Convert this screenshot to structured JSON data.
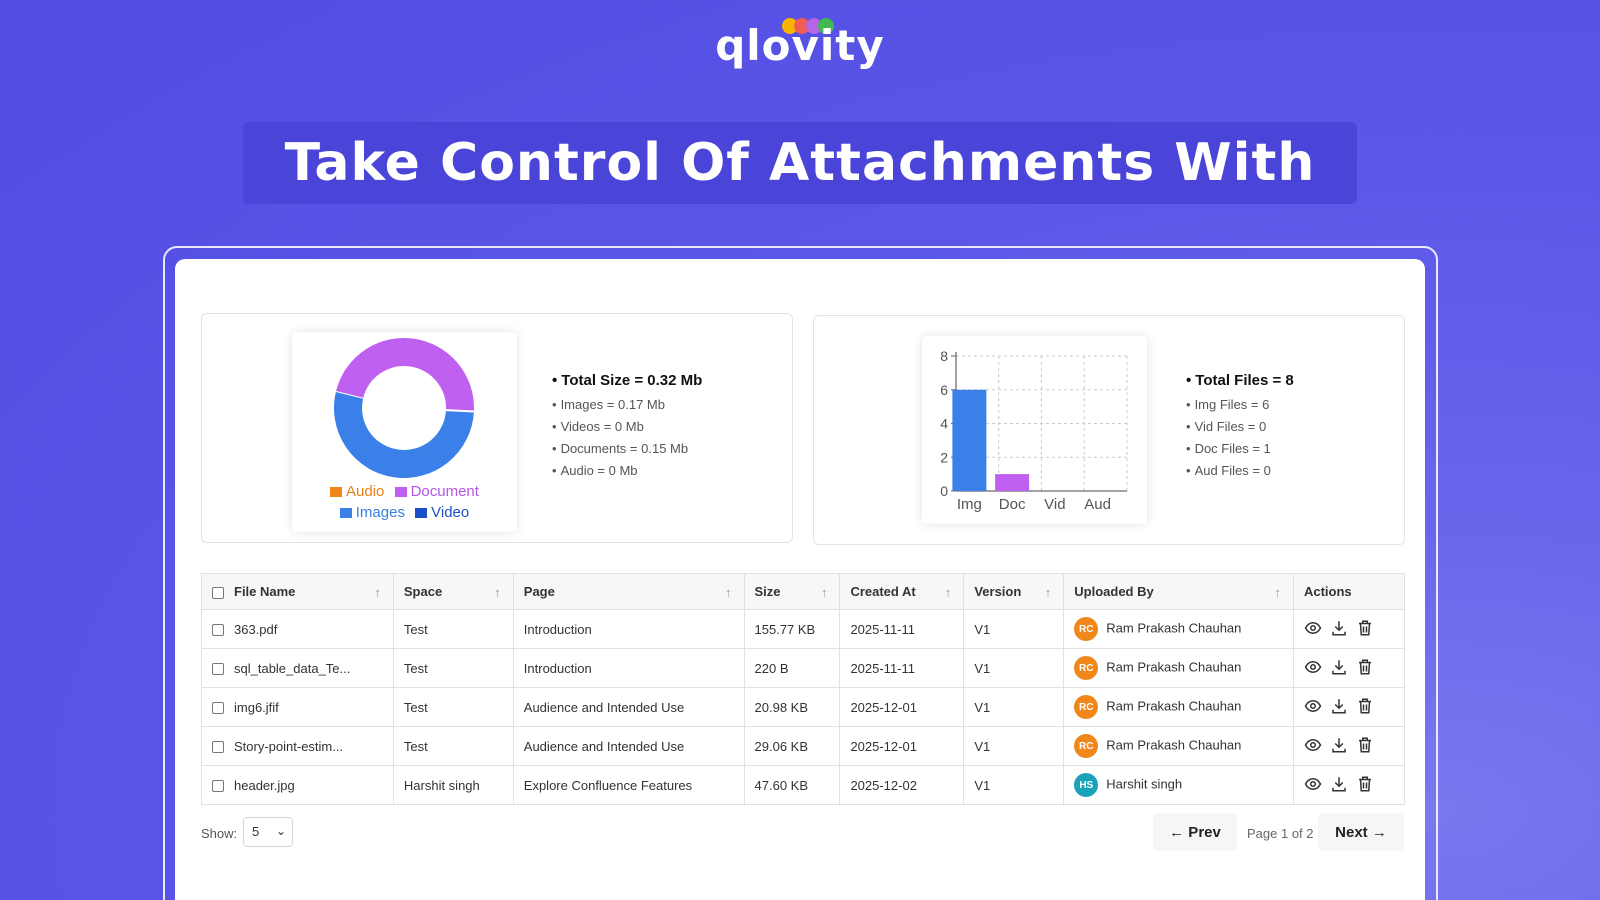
{
  "brand": {
    "name": "qlovity",
    "dot_colors": [
      "#f7b500",
      "#f25c54",
      "#b565e6",
      "#3fb950"
    ]
  },
  "headline": "Take Control Of Attachments With",
  "size_card": {
    "legend": [
      {
        "label": "Audio",
        "color": "#f0871a",
        "text_color": "#e8821a"
      },
      {
        "label": "Document",
        "color": "#c060f0",
        "text_color": "#b656ea"
      },
      {
        "label": "Images",
        "color": "#3a80e8",
        "text_color": "#3a7fe0"
      },
      {
        "label": "Video",
        "color": "#1a4fc8",
        "text_color": "#1f4fc2"
      }
    ],
    "total_label": "Total Size =  0.32 Mb",
    "rows": [
      "Images = 0.17 Mb",
      "Videos = 0 Mb",
      "Documents = 0.15 Mb",
      "Audio = 0 Mb"
    ]
  },
  "files_card": {
    "total_label": "Total Files =  8",
    "rows": [
      "Img Files = 6",
      "Vid Files = 0",
      "Doc Files = 1",
      "Aud Files = 0"
    ]
  },
  "chart_data": [
    {
      "type": "pie",
      "categories": [
        "Images",
        "Document",
        "Audio",
        "Video"
      ],
      "values": [
        0.17,
        0.15,
        0,
        0
      ],
      "colors": [
        "#3a80e8",
        "#c060f0",
        "#f0871a",
        "#1a4fc8"
      ],
      "legend": "bottom"
    },
    {
      "type": "bar",
      "categories": [
        "Img",
        "Doc",
        "Vid",
        "Aud"
      ],
      "values": [
        6,
        1,
        0,
        0
      ],
      "colors": [
        "#3a80e8",
        "#c060f0",
        "#888888",
        "#888888"
      ],
      "ylim": [
        0,
        8
      ],
      "yticks": [
        "0",
        "2",
        "4",
        "6",
        "8"
      ],
      "grid": true
    }
  ],
  "table": {
    "columns": [
      "File Name",
      "Space",
      "Page",
      "Size",
      "Created At",
      "Version",
      "Uploaded By",
      "Actions"
    ],
    "rows": [
      {
        "file": "363.pdf",
        "space": "Test",
        "page": "Introduction",
        "size": "155.77 KB",
        "created": "2025-11-11",
        "version": "V1",
        "initials": "RC",
        "uploader": "Ram Prakash Chauhan",
        "color": "#f0871a"
      },
      {
        "file": "sql_table_data_Te...",
        "space": "Test",
        "page": "Introduction",
        "size": "220 B",
        "created": "2025-11-11",
        "version": "V1",
        "initials": "RC",
        "uploader": "Ram Prakash Chauhan",
        "color": "#f0871a"
      },
      {
        "file": "img6.jfif",
        "space": "Test",
        "page": "Audience and Intended Use",
        "size": "20.98 KB",
        "created": "2025-12-01",
        "version": "V1",
        "initials": "RC",
        "uploader": "Ram Prakash Chauhan",
        "color": "#f0871a"
      },
      {
        "file": "Story-point-estim...",
        "space": "Test",
        "page": "Audience and Intended Use",
        "size": "29.06 KB",
        "created": "2025-12-01",
        "version": "V1",
        "initials": "RC",
        "uploader": "Ram Prakash Chauhan",
        "color": "#f0871a"
      },
      {
        "file": "header.jpg",
        "space": "Harshit singh",
        "page": "Explore Confluence Features",
        "size": "47.60 KB",
        "created": "2025-12-02",
        "version": "V1",
        "initials": "HS",
        "uploader": "Harshit singh",
        "color": "#1aa3b8"
      }
    ]
  },
  "pagination": {
    "show_label": "Show:",
    "page_size": "5",
    "prev": "← Prev",
    "page_info": "Page 1 of 2",
    "next": "Next →"
  }
}
